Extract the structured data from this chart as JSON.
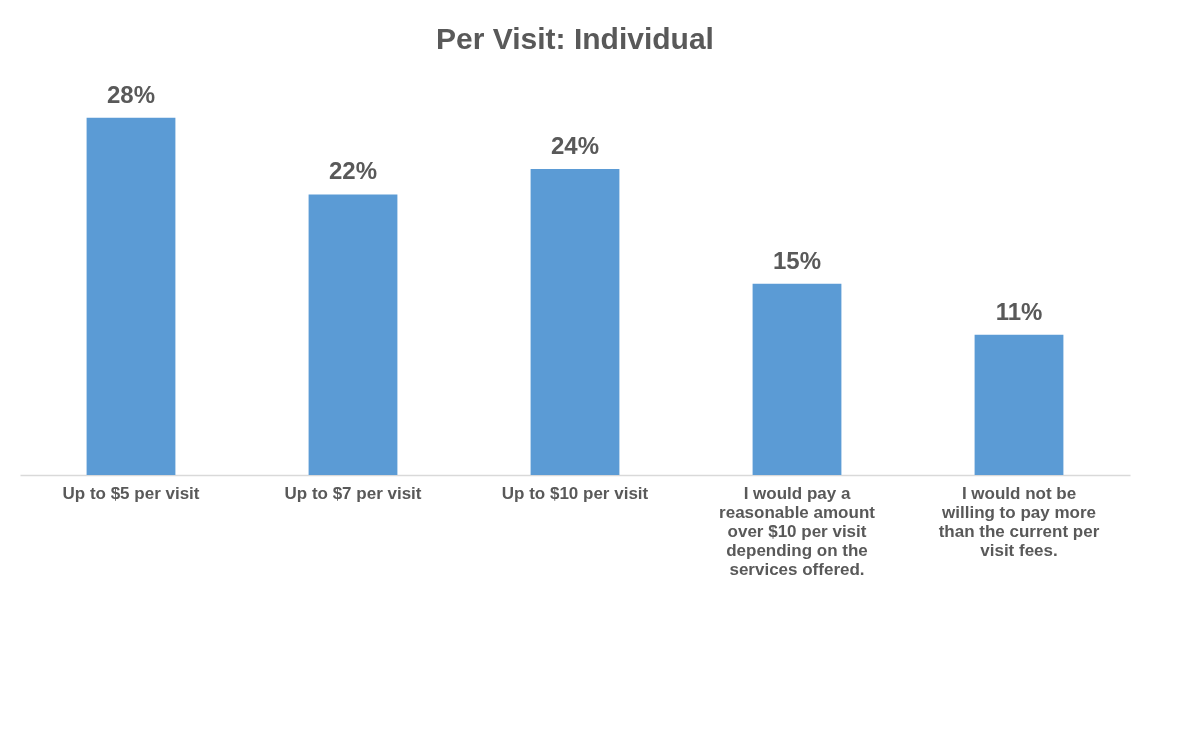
{
  "chart_data": {
    "type": "bar",
    "title": "Per Visit: Individual",
    "categories": [
      "Up to $5 per visit",
      "Up to $7 per visit",
      "Up to $10 per visit",
      "I would pay a reasonable amount over $10 per visit depending on the services offered.",
      "I would not be willing to pay more than the current per visit fees."
    ],
    "values": [
      28,
      22,
      24,
      15,
      11
    ],
    "value_labels": [
      "28%",
      "22%",
      "24%",
      "15%",
      "11%"
    ],
    "color": "#5b9bd5",
    "grid": false
  }
}
